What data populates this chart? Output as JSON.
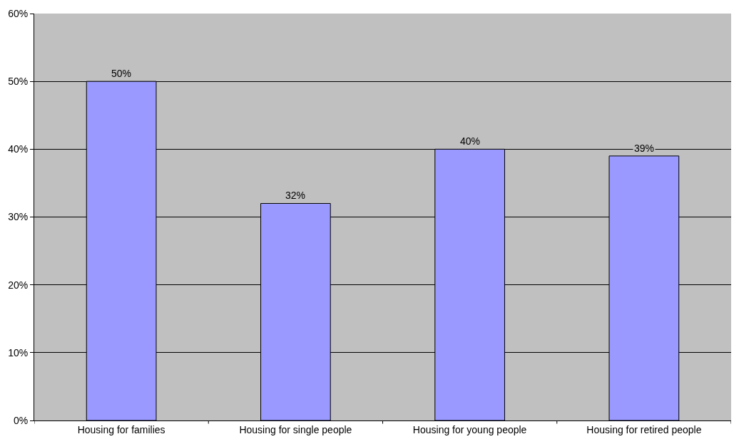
{
  "chart_data": {
    "type": "bar",
    "categories": [
      "Housing for families",
      "Housing for single people",
      "Housing for young people",
      "Housing for retired people"
    ],
    "values": [
      50,
      32,
      40,
      39
    ],
    "value_labels": [
      "50%",
      "32%",
      "40%",
      "39%"
    ],
    "color": "#9999ff",
    "ylim": [
      0,
      60
    ],
    "yticks": [
      {
        "value": 0,
        "label": "0%"
      },
      {
        "value": 10,
        "label": "10%"
      },
      {
        "value": 20,
        "label": "20%"
      },
      {
        "value": 30,
        "label": "30%"
      },
      {
        "value": 40,
        "label": "40%"
      },
      {
        "value": 50,
        "label": "50%"
      },
      {
        "value": 60,
        "label": "60%"
      }
    ],
    "grid": "y"
  }
}
